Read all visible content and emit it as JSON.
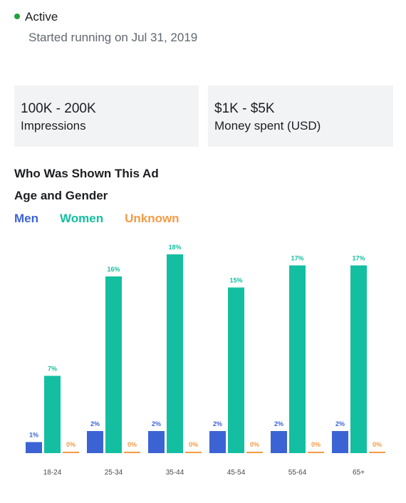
{
  "status": {
    "label": "Active",
    "started": "Started running on Jul 31, 2019",
    "dot_color": "#1fa33a"
  },
  "stats": [
    {
      "value": "100K - 200K",
      "label": "Impressions"
    },
    {
      "value": "$1K - $5K",
      "label": "Money spent (USD)"
    }
  ],
  "section_title": "Who Was Shown This Ad",
  "chart_title": "Age and Gender",
  "colors": {
    "men": "#3b63d4",
    "women": "#13bfa0",
    "unknown": "#f59a45"
  },
  "chart_data": {
    "type": "bar",
    "title": "Age and Gender",
    "categories": [
      "18-24",
      "25-34",
      "35-44",
      "45-54",
      "55-64",
      "65+"
    ],
    "series": [
      {
        "name": "Men",
        "values": [
          1,
          2,
          2,
          2,
          2,
          2
        ]
      },
      {
        "name": "Women",
        "values": [
          7,
          16,
          18,
          15,
          17,
          17
        ]
      },
      {
        "name": "Unknown",
        "values": [
          0,
          0,
          0,
          0,
          0,
          0
        ]
      }
    ],
    "ylim": [
      0,
      18
    ],
    "grid": false,
    "legend_position": "top-left",
    "value_suffix": "%"
  }
}
